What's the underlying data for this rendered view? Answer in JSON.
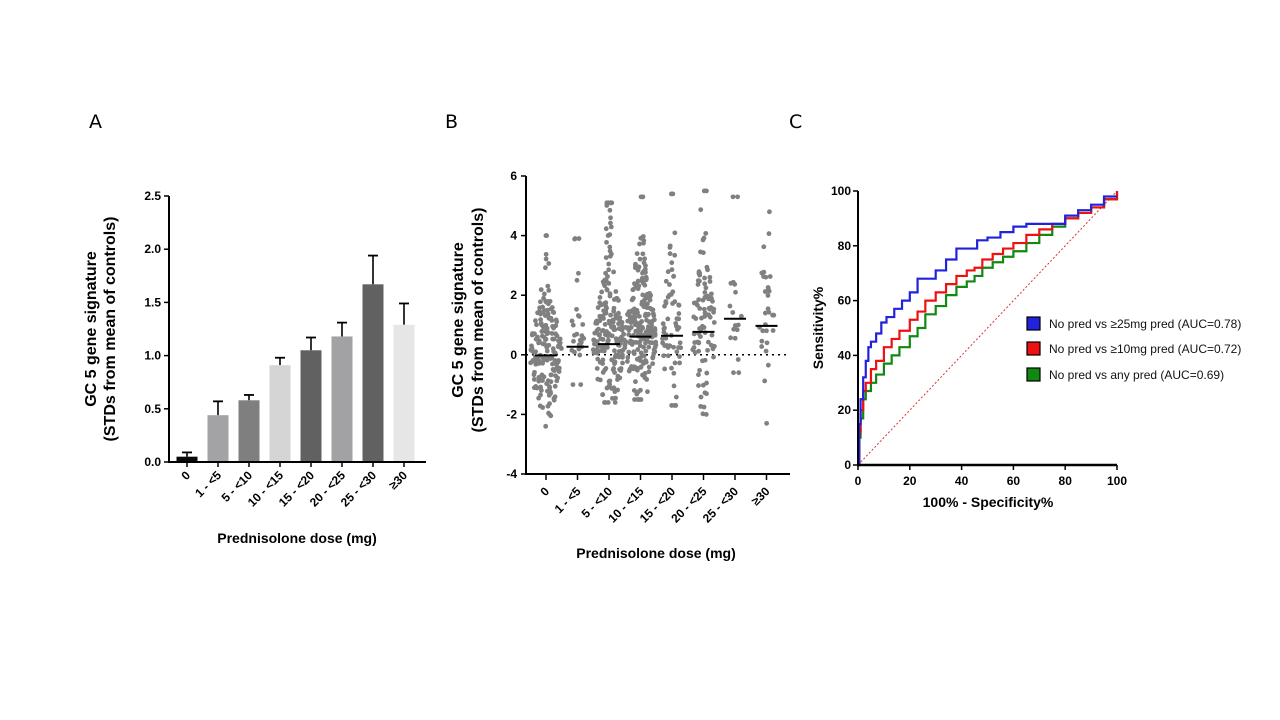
{
  "panels": {
    "a_label": "A",
    "b_label": "B",
    "c_label": "C"
  },
  "chart_data": [
    {
      "id": "A",
      "type": "bar",
      "title": "",
      "ylabel_line1": "GC 5 gene signature",
      "ylabel_line2": "(STDs from mean of controls)",
      "xlabel": "Prednisolone dose (mg)",
      "categories": [
        "0",
        "1 - <5",
        "5 - <10",
        "10 - <15",
        "15 - <20",
        "20 - <25",
        "25 - <30",
        "≥30"
      ],
      "values": [
        0.05,
        0.44,
        0.58,
        0.91,
        1.05,
        1.18,
        1.67,
        1.29
      ],
      "error_upper": [
        0.09,
        0.57,
        0.63,
        0.98,
        1.17,
        1.31,
        1.94,
        1.49
      ],
      "bar_colors": [
        "#0a0a0a",
        "#a3a3a6",
        "#7f7f7f",
        "#d5d5d5",
        "#616161",
        "#a2a2a5",
        "#616161",
        "#e6e6e6"
      ],
      "ylim": [
        0,
        2.5
      ],
      "yticks": [
        "0.0",
        "0.5",
        "1.0",
        "1.5",
        "2.0",
        "2.5"
      ],
      "grid": false
    },
    {
      "id": "B",
      "type": "scatter",
      "subtype": "beeswarm with mean line",
      "ylabel_line1": "GC 5 gene signature",
      "ylabel_line2": "(STDs from mean of controls)",
      "xlabel": "Prednisolone dose (mg)",
      "categories": [
        "0",
        "1 - <5",
        "5 - <10",
        "10 - <15",
        "15 - <20",
        "20 - <25",
        "25 - <30",
        "≥30"
      ],
      "means": [
        -0.02,
        0.27,
        0.36,
        0.61,
        0.64,
        0.77,
        1.21,
        0.97
      ],
      "ranges": [
        [
          -2.4,
          4.0
        ],
        [
          -1.0,
          3.9
        ],
        [
          -1.6,
          5.1
        ],
        [
          -1.5,
          5.3
        ],
        [
          -1.7,
          5.4
        ],
        [
          -2.0,
          5.5
        ],
        [
          -0.6,
          5.3
        ],
        [
          -2.3,
          4.8
        ]
      ],
      "approx_n": [
        420,
        60,
        480,
        560,
        160,
        220,
        40,
        70
      ],
      "reference_line": 0,
      "point_color": "#808080",
      "ylim": [
        -4,
        6
      ],
      "yticks": [
        "-4",
        "-2",
        "0",
        "2",
        "4",
        "6"
      ],
      "grid": false
    },
    {
      "id": "C",
      "type": "line",
      "subtype": "ROC",
      "xlabel": "100% - Specificity%",
      "ylabel": "Sensitivity%",
      "xlim": [
        0,
        100
      ],
      "ylim": [
        0,
        100
      ],
      "xticks": [
        "0",
        "20",
        "40",
        "60",
        "80",
        "100"
      ],
      "yticks": [
        "0",
        "20",
        "40",
        "60",
        "80",
        "100"
      ],
      "legend_position": "center-right",
      "series": [
        {
          "name": "No pred vs ≥25mg pred (AUC=0.78)",
          "color": "#2222dd",
          "x": [
            0,
            0.5,
            1,
            2,
            3,
            4,
            5,
            7,
            9,
            11,
            14,
            17,
            20,
            23,
            27,
            30,
            34,
            38,
            42,
            46,
            50,
            55,
            60,
            65,
            70,
            75,
            80,
            85,
            90,
            95,
            100
          ],
          "y": [
            0,
            15,
            24,
            32,
            38,
            43,
            45,
            48,
            52,
            54,
            57,
            60,
            63,
            68,
            68,
            71,
            75,
            79,
            79,
            82,
            83,
            85,
            87,
            88,
            88,
            88,
            91,
            93,
            95,
            98,
            98
          ]
        },
        {
          "name": "No pred vs ≥10mg pred (AUC=0.72)",
          "color": "#ee1111",
          "x": [
            0,
            0.5,
            1,
            2,
            3,
            5,
            7,
            10,
            13,
            16,
            20,
            23,
            26,
            30,
            34,
            38,
            42,
            45,
            48,
            52,
            56,
            60,
            65,
            70,
            75,
            80,
            85,
            90,
            95,
            100
          ],
          "y": [
            0,
            12,
            20,
            27,
            30,
            35,
            38,
            43,
            46,
            49,
            53,
            56,
            60,
            63,
            66,
            69,
            71,
            72,
            75,
            77,
            79,
            81,
            84,
            86,
            88,
            90,
            92,
            94,
            97,
            100
          ]
        },
        {
          "name": "No pred vs any pred (AUC=0.69)",
          "color": "#118811",
          "x": [
            0,
            0.5,
            1,
            2,
            3,
            5,
            7,
            10,
            13,
            16,
            20,
            23,
            26,
            30,
            34,
            38,
            42,
            45,
            48,
            52,
            56,
            60,
            65,
            70,
            75,
            80,
            85,
            90,
            95,
            100
          ],
          "y": [
            0,
            10,
            17,
            24,
            27,
            30,
            33,
            37,
            40,
            43,
            47,
            50,
            55,
            58,
            62,
            65,
            67,
            69,
            72,
            74,
            76,
            78,
            81,
            84,
            87,
            90,
            92,
            94,
            97,
            100
          ]
        },
        {
          "name": "reference",
          "color": "#dd3333",
          "dashed": true,
          "x": [
            0,
            100
          ],
          "y": [
            0,
            100
          ]
        }
      ],
      "grid": false
    }
  ]
}
